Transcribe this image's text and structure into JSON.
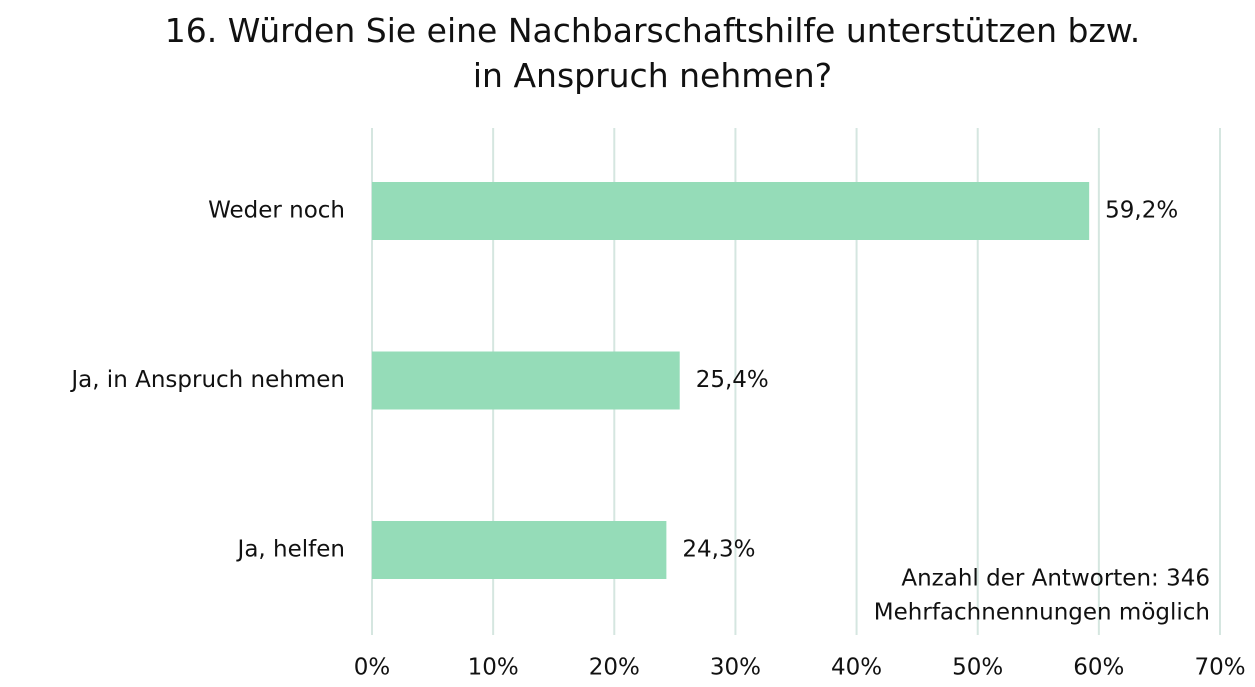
{
  "chart_data": {
    "type": "bar",
    "orientation": "horizontal",
    "title": "16. Würden Sie eine Nachbarschaftshilfe unterstützen bzw. in Anspruch nehmen?",
    "categories": [
      "Weder noch",
      "Ja, in Anspruch nehmen",
      "Ja, helfen"
    ],
    "values": [
      59.2,
      25.4,
      24.3
    ],
    "value_labels": [
      "59,2%",
      "25,4%",
      "24,3%"
    ],
    "color": "#95dcb8",
    "xlim": [
      0,
      70
    ],
    "xticks": [
      {
        "value": 0,
        "label": "0%"
      },
      {
        "value": 10,
        "label": "10%"
      },
      {
        "value": 20,
        "label": "20%"
      },
      {
        "value": 30,
        "label": "30%"
      },
      {
        "value": 40,
        "label": "40%"
      },
      {
        "value": 50,
        "label": "50%"
      },
      {
        "value": 60,
        "label": "60%"
      },
      {
        "value": 70,
        "label": "70%"
      }
    ],
    "grid": true,
    "annotations": [
      "Anzahl der Antworten: 346",
      "Mehrfachnennungen möglich"
    ]
  }
}
